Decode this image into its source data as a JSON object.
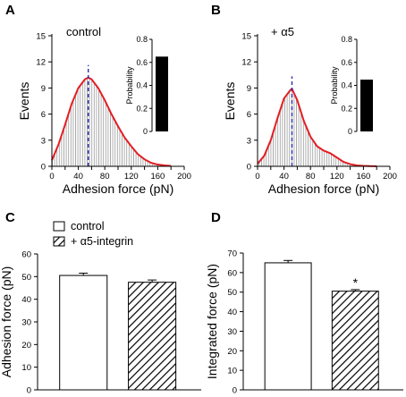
{
  "colors": {
    "curve": "#e31e24",
    "dash": "#2d2db4",
    "fill_hatch": "#9a9a9a",
    "ink": "#000000"
  },
  "panels": {
    "A": {
      "letter": "A",
      "condition": "control"
    },
    "B": {
      "letter": "B",
      "condition": "+ α5"
    },
    "C": {
      "letter": "C"
    },
    "D": {
      "letter": "D"
    }
  },
  "legend": {
    "items": [
      "control",
      "+ α5-integrin"
    ]
  },
  "chart_data": [
    {
      "panel": "A",
      "type": "area",
      "xlabel": "Adhesion force (pN)",
      "ylabel": "Events",
      "xlim": [
        0,
        200
      ],
      "ylim": [
        0,
        15
      ],
      "xticks": [
        "0",
        "20",
        "40",
        "60",
        "80",
        "100",
        "120",
        "140",
        "160",
        "180",
        "200"
      ],
      "yticks": [
        "0",
        "3",
        "6",
        "9",
        "12",
        "15"
      ],
      "peak_marker_x": 55,
      "x": [
        0,
        10,
        20,
        30,
        40,
        50,
        55,
        60,
        70,
        80,
        90,
        100,
        110,
        120,
        130,
        140,
        150,
        160,
        170,
        180
      ],
      "y": [
        0.7,
        2.5,
        4.8,
        7.2,
        9.0,
        10.0,
        10.2,
        10.0,
        9.0,
        7.6,
        6.0,
        4.6,
        3.3,
        2.3,
        1.4,
        0.8,
        0.4,
        0.2,
        0.1,
        0.05
      ],
      "inset": {
        "type": "bar",
        "ylabel": "Probability",
        "ylim": [
          0,
          0.8
        ],
        "yticks": [
          "0",
          "0.2",
          "0.4",
          "0.6",
          "0.8"
        ],
        "values": [
          0.65
        ]
      }
    },
    {
      "panel": "B",
      "type": "area",
      "xlabel": "Adhesion force (pN)",
      "ylabel": "Events",
      "xlim": [
        0,
        200
      ],
      "ylim": [
        0,
        15
      ],
      "xticks": [
        "0",
        "20",
        "40",
        "60",
        "80",
        "100",
        "120",
        "140",
        "160",
        "180",
        "200"
      ],
      "yticks": [
        "0",
        "3",
        "6",
        "9",
        "12",
        "15"
      ],
      "peak_marker_x": 52,
      "x": [
        0,
        10,
        20,
        30,
        40,
        50,
        52,
        60,
        70,
        80,
        90,
        100,
        110,
        120,
        130,
        140,
        150,
        160,
        170,
        180
      ],
      "y": [
        0.3,
        1.2,
        3.0,
        5.5,
        7.8,
        8.8,
        8.9,
        7.6,
        5.2,
        3.4,
        2.3,
        1.8,
        1.5,
        1.0,
        0.5,
        0.25,
        0.1,
        0.05,
        0.02,
        0.01
      ],
      "inset": {
        "type": "bar",
        "ylabel": "Probability",
        "ylim": [
          0,
          0.8
        ],
        "yticks": [
          "0",
          "0.2",
          "0.4",
          "0.6",
          "0.8"
        ],
        "values": [
          0.45
        ]
      }
    },
    {
      "panel": "C",
      "type": "bar",
      "categories": [
        "control",
        "+ α5-integrin"
      ],
      "values": [
        50.5,
        47.5
      ],
      "errors": [
        1.0,
        1.0
      ],
      "ylabel": "Adhesion force (pN)",
      "ylim": [
        0,
        60
      ],
      "yticks": [
        "0",
        "10",
        "20",
        "30",
        "40",
        "50",
        "60"
      ]
    },
    {
      "panel": "D",
      "type": "bar",
      "categories": [
        "control",
        "+ α5-integrin"
      ],
      "values": [
        65,
        50.5
      ],
      "errors": [
        1.2,
        0.8
      ],
      "ylabel": "Integrated force (pN)",
      "ylim": [
        0,
        70
      ],
      "yticks": [
        "0",
        "10",
        "20",
        "30",
        "40",
        "50",
        "60",
        "70"
      ],
      "annotation": "*"
    }
  ]
}
